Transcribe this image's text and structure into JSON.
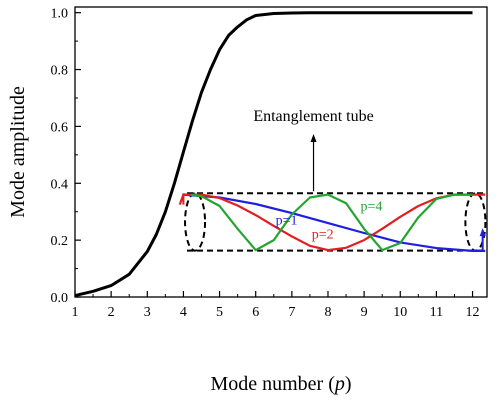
{
  "chart_data": {
    "type": "line",
    "xlabel_prefix": "Mode number (",
    "xlabel_var": "p",
    "xlabel_suffix": ")",
    "ylabel": "Mode amplitude",
    "xlim": [
      1,
      12.4
    ],
    "ylim": [
      0.0,
      1.02
    ],
    "xticks": [
      "1",
      "2",
      "3",
      "4",
      "5",
      "6",
      "7",
      "8",
      "9",
      "10",
      "11",
      "12"
    ],
    "yticks": [
      "0.0",
      "0.2",
      "0.4",
      "0.6",
      "0.8",
      "1.0"
    ],
    "grid": false,
    "series": [
      {
        "color": "#000000",
        "x": [
          1.0,
          1.5,
          2.0,
          2.5,
          3.0,
          3.25,
          3.5,
          3.75,
          4.0,
          4.25,
          4.5,
          4.75,
          5.0,
          5.25,
          5.5,
          5.75,
          6.0,
          6.5,
          7.0,
          7.5,
          8.0,
          9.0,
          10.0,
          11.0,
          12.0
        ],
        "y": [
          0.005,
          0.02,
          0.04,
          0.08,
          0.16,
          0.22,
          0.3,
          0.4,
          0.51,
          0.62,
          0.72,
          0.8,
          0.87,
          0.92,
          0.95,
          0.975,
          0.99,
          0.997,
          0.999,
          1.0,
          1.0,
          1.0,
          1.0,
          1.0,
          1.0
        ]
      },
      {
        "name": "p=1",
        "color": "#1f1fe0",
        "x": [
          4.0,
          5.0,
          6.0,
          7.0,
          8.0,
          9.0,
          10.0,
          11.0,
          12.0,
          12.35
        ],
        "y": [
          0.36,
          0.35,
          0.327,
          0.295,
          0.26,
          0.225,
          0.192,
          0.172,
          0.162,
          0.162
        ]
      },
      {
        "name": "p=2",
        "color": "#e02020",
        "x": [
          3.9,
          4.0,
          4.5,
          5.0,
          5.5,
          6.0,
          6.5,
          7.0,
          7.5,
          8.0,
          8.5,
          9.0,
          9.5,
          10.0,
          10.5,
          11.0,
          11.5,
          12.0,
          12.35
        ],
        "y": [
          0.325,
          0.36,
          0.36,
          0.348,
          0.322,
          0.288,
          0.25,
          0.213,
          0.18,
          0.165,
          0.173,
          0.2,
          0.24,
          0.282,
          0.32,
          0.347,
          0.36,
          0.36,
          0.36
        ]
      },
      {
        "name": "p=4",
        "color": "#22a52f",
        "x": [
          4.2,
          4.5,
          5.0,
          5.5,
          6.0,
          6.5,
          7.0,
          7.5,
          8.0,
          8.5,
          9.0,
          9.5,
          10.0,
          10.5,
          11.0,
          11.5,
          12.0
        ],
        "y": [
          0.36,
          0.355,
          0.32,
          0.24,
          0.165,
          0.2,
          0.29,
          0.35,
          0.36,
          0.33,
          0.24,
          0.165,
          0.19,
          0.28,
          0.345,
          0.36,
          0.36
        ]
      }
    ],
    "annotations": {
      "tube_label": "Entanglement tube",
      "tube_top": 0.365,
      "tube_bottom": 0.163,
      "tube_x": [
        4.1,
        12.3
      ]
    }
  }
}
